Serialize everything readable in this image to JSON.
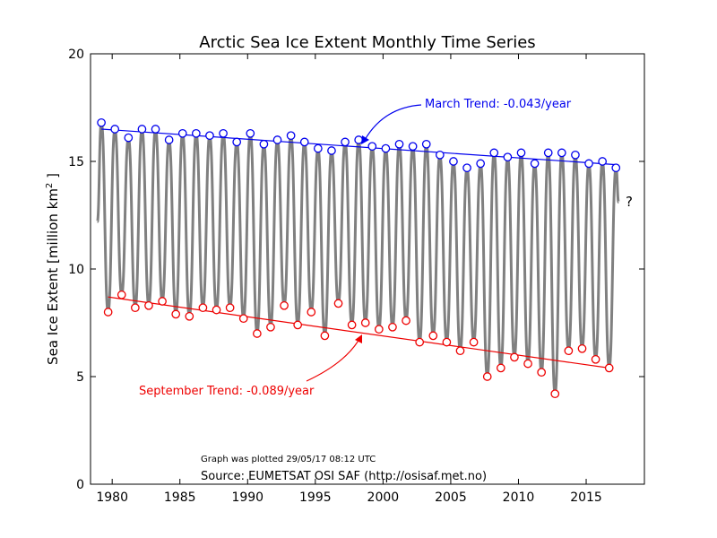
{
  "chart_data": {
    "type": "line",
    "title": "Arctic Sea Ice Extent Monthly Time Series",
    "ylabel_main": "Sea Ice Extent [million km",
    "ylabel_sup": "2",
    "ylabel_end": " ]",
    "xlabel": "",
    "xlim": [
      1978.4,
      2019.3
    ],
    "ylim": [
      0,
      20
    ],
    "xticks": [
      1980,
      1985,
      1990,
      1995,
      2000,
      2005,
      2010,
      2015
    ],
    "xtick_labels": [
      "1980",
      "1985",
      "1990",
      "1995",
      "2000",
      "2005",
      "2010",
      "2015"
    ],
    "yticks": [
      0,
      5,
      10,
      15,
      20
    ],
    "ytick_labels": [
      "0",
      "5",
      "10",
      "15",
      "20"
    ],
    "grid": false,
    "colors": {
      "monthly": "#808080",
      "march": "#0000ee",
      "september": "#ee0000",
      "text": "#000000"
    },
    "monthly_start": 1978.9,
    "monthly_start_value": 12.2,
    "monthly_end": 2017.4,
    "monthly_end_value": 13.1,
    "series": [
      {
        "name": "March",
        "points": [
          [
            1979.2,
            16.8
          ],
          [
            1980.2,
            16.5
          ],
          [
            1981.2,
            16.1
          ],
          [
            1982.2,
            16.5
          ],
          [
            1983.2,
            16.5
          ],
          [
            1984.2,
            16.0
          ],
          [
            1985.2,
            16.3
          ],
          [
            1986.2,
            16.3
          ],
          [
            1987.2,
            16.2
          ],
          [
            1988.2,
            16.3
          ],
          [
            1989.2,
            15.9
          ],
          [
            1990.2,
            16.3
          ],
          [
            1991.2,
            15.8
          ],
          [
            1992.2,
            16.0
          ],
          [
            1993.2,
            16.2
          ],
          [
            1994.2,
            15.9
          ],
          [
            1995.2,
            15.6
          ],
          [
            1996.2,
            15.5
          ],
          [
            1997.2,
            15.9
          ],
          [
            1998.2,
            16.0
          ],
          [
            1999.2,
            15.7
          ],
          [
            2000.2,
            15.6
          ],
          [
            2001.2,
            15.8
          ],
          [
            2002.2,
            15.7
          ],
          [
            2003.2,
            15.8
          ],
          [
            2004.2,
            15.3
          ],
          [
            2005.2,
            15.0
          ],
          [
            2006.2,
            14.7
          ],
          [
            2007.2,
            14.9
          ],
          [
            2008.2,
            15.4
          ],
          [
            2009.2,
            15.2
          ],
          [
            2010.2,
            15.4
          ],
          [
            2011.2,
            14.9
          ],
          [
            2012.2,
            15.4
          ],
          [
            2013.2,
            15.4
          ],
          [
            2014.2,
            15.3
          ],
          [
            2015.2,
            14.9
          ],
          [
            2016.2,
            15.0
          ],
          [
            2017.2,
            14.7
          ]
        ]
      },
      {
        "name": "September",
        "points": [
          [
            1979.7,
            8.0
          ],
          [
            1980.7,
            8.8
          ],
          [
            1981.7,
            8.2
          ],
          [
            1982.7,
            8.3
          ],
          [
            1983.7,
            8.5
          ],
          [
            1984.7,
            7.9
          ],
          [
            1985.7,
            7.8
          ],
          [
            1986.7,
            8.2
          ],
          [
            1987.7,
            8.1
          ],
          [
            1988.7,
            8.2
          ],
          [
            1989.7,
            7.7
          ],
          [
            1990.7,
            7.0
          ],
          [
            1991.7,
            7.3
          ],
          [
            1992.7,
            8.3
          ],
          [
            1993.7,
            7.4
          ],
          [
            1994.7,
            8.0
          ],
          [
            1995.7,
            6.9
          ],
          [
            1996.7,
            8.4
          ],
          [
            1997.7,
            7.4
          ],
          [
            1998.7,
            7.5
          ],
          [
            1999.7,
            7.2
          ],
          [
            2000.7,
            7.3
          ],
          [
            2001.7,
            7.6
          ],
          [
            2002.7,
            6.6
          ],
          [
            2003.7,
            6.9
          ],
          [
            2004.7,
            6.6
          ],
          [
            2005.7,
            6.2
          ],
          [
            2006.7,
            6.6
          ],
          [
            2007.7,
            5.0
          ],
          [
            2008.7,
            5.4
          ],
          [
            2009.7,
            5.9
          ],
          [
            2010.7,
            5.6
          ],
          [
            2011.7,
            5.2
          ],
          [
            2012.7,
            4.2
          ],
          [
            2013.7,
            6.2
          ],
          [
            2014.7,
            6.3
          ],
          [
            2015.7,
            5.8
          ],
          [
            2016.7,
            5.4
          ]
        ]
      }
    ],
    "trends": {
      "march": {
        "x": [
          1979.2,
          2017.2
        ],
        "y": [
          16.5,
          14.85
        ]
      },
      "september": {
        "x": [
          1979.7,
          2016.7
        ],
        "y": [
          8.7,
          5.4
        ]
      }
    },
    "annotations": {
      "march_label": "March Trend: -0.043/year",
      "september_label": "September Trend: -0.089/year",
      "question": "?",
      "plotted": "Graph was plotted 29/05/17 08:12 UTC",
      "source": "Source: EUMETSAT OSI SAF (http://osisaf.met.no)"
    }
  }
}
